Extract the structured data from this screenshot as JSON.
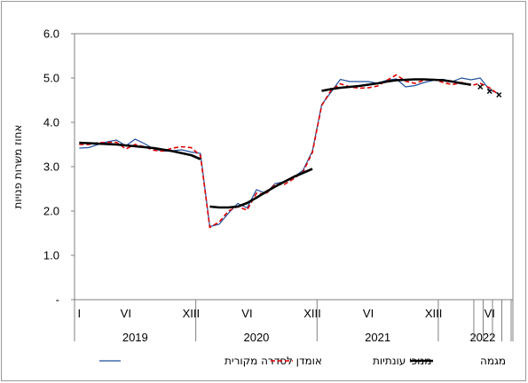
{
  "chart_data": {
    "type": "line",
    "title": "",
    "ylabel": "אחוז משרות פנויות",
    "ylim": [
      0,
      6
    ],
    "yticks": [
      "-",
      "1.0",
      "2.0",
      "3.0",
      "4.0",
      "5.0",
      "6.0"
    ],
    "grid": false,
    "legend_position": "bottom",
    "x_period_labels": [
      {
        "label": "I",
        "index": 0
      },
      {
        "label": "VI",
        "index": 5
      },
      {
        "label": "XIII",
        "index": 12
      },
      {
        "label": "VI",
        "index": 18
      },
      {
        "label": "XIII",
        "index": 25
      },
      {
        "label": "VI",
        "index": 31
      },
      {
        "label": "XIII",
        "index": 38
      },
      {
        "label": "VI",
        "index": 44
      }
    ],
    "years": [
      {
        "label": "2019",
        "start": 0,
        "end": 12
      },
      {
        "label": "2020",
        "start": 13,
        "end": 25
      },
      {
        "label": "2021",
        "start": 26,
        "end": 38
      },
      {
        "label": "2022",
        "start": 39,
        "end": 46
      }
    ],
    "series": [
      {
        "name": "אומדן לסדרה מקורית",
        "color": "#1f4e9a",
        "style": "solid",
        "points": [
          [
            0,
            3.42
          ],
          [
            1,
            3.43
          ],
          [
            2,
            3.5
          ],
          [
            3,
            3.56
          ],
          [
            4,
            3.6
          ],
          [
            5,
            3.47
          ],
          [
            6,
            3.62
          ],
          [
            7,
            3.52
          ],
          [
            8,
            3.4
          ],
          [
            9,
            3.35
          ],
          [
            10,
            3.36
          ],
          [
            11,
            3.38
          ],
          [
            12,
            3.33
          ],
          [
            13,
            3.3
          ],
          [
            14,
            1.65
          ],
          [
            15,
            1.7
          ],
          [
            16,
            1.95
          ],
          [
            17,
            2.17
          ],
          [
            18,
            2.07
          ],
          [
            19,
            2.48
          ],
          [
            20,
            2.4
          ],
          [
            21,
            2.62
          ],
          [
            22,
            2.66
          ],
          [
            23,
            2.76
          ],
          [
            24,
            2.92
          ],
          [
            25,
            3.35
          ],
          [
            26,
            4.4
          ],
          [
            27,
            4.68
          ],
          [
            28,
            4.97
          ],
          [
            29,
            4.92
          ],
          [
            30,
            4.92
          ],
          [
            31,
            4.92
          ],
          [
            32,
            4.88
          ],
          [
            33,
            4.95
          ],
          [
            34,
            4.98
          ],
          [
            35,
            4.8
          ],
          [
            36,
            4.83
          ],
          [
            37,
            4.9
          ],
          [
            38,
            4.95
          ],
          [
            39,
            4.97
          ],
          [
            40,
            4.92
          ],
          [
            41,
            5.0
          ],
          [
            42,
            4.96
          ],
          [
            43,
            5.0
          ],
          [
            44,
            4.73
          ],
          [
            45,
            4.65
          ]
        ]
      },
      {
        "name": "מנוכי עונתיות",
        "color": "#e00000",
        "style": "dashed",
        "points": [
          [
            0,
            3.5
          ],
          [
            1,
            3.5
          ],
          [
            2,
            3.54
          ],
          [
            3,
            3.55
          ],
          [
            4,
            3.55
          ],
          [
            5,
            3.4
          ],
          [
            6,
            3.5
          ],
          [
            7,
            3.45
          ],
          [
            8,
            3.37
          ],
          [
            9,
            3.35
          ],
          [
            10,
            3.42
          ],
          [
            11,
            3.45
          ],
          [
            12,
            3.43
          ],
          [
            13,
            3.25
          ],
          [
            14,
            1.63
          ],
          [
            15,
            1.75
          ],
          [
            16,
            2.0
          ],
          [
            17,
            2.1
          ],
          [
            18,
            2.02
          ],
          [
            19,
            2.4
          ],
          [
            20,
            2.38
          ],
          [
            21,
            2.6
          ],
          [
            22,
            2.6
          ],
          [
            23,
            2.73
          ],
          [
            24,
            2.88
          ],
          [
            25,
            3.32
          ],
          [
            26,
            4.38
          ],
          [
            27,
            4.72
          ],
          [
            28,
            4.87
          ],
          [
            29,
            4.8
          ],
          [
            30,
            4.77
          ],
          [
            31,
            4.78
          ],
          [
            32,
            4.82
          ],
          [
            33,
            4.95
          ],
          [
            34,
            5.07
          ],
          [
            35,
            4.93
          ],
          [
            36,
            4.88
          ],
          [
            37,
            4.95
          ],
          [
            38,
            4.97
          ],
          [
            39,
            4.9
          ],
          [
            40,
            4.85
          ],
          [
            41,
            4.9
          ],
          [
            42,
            4.83
          ],
          [
            43,
            4.88
          ],
          [
            44,
            4.78
          ],
          [
            45,
            4.62
          ]
        ]
      },
      {
        "name": "מגמה",
        "color": "#000000",
        "style": "bold",
        "segments": [
          [
            [
              0,
              3.54
            ],
            [
              2,
              3.52
            ],
            [
              4,
              3.5
            ],
            [
              6,
              3.46
            ],
            [
              8,
              3.42
            ],
            [
              10,
              3.35
            ],
            [
              12,
              3.26
            ],
            [
              13,
              3.17
            ]
          ],
          [
            [
              14,
              2.1
            ],
            [
              15,
              2.08
            ],
            [
              16,
              2.08
            ],
            [
              17,
              2.1
            ],
            [
              18,
              2.18
            ],
            [
              19,
              2.3
            ],
            [
              20,
              2.43
            ],
            [
              21,
              2.55
            ],
            [
              22,
              2.66
            ],
            [
              23,
              2.77
            ],
            [
              24,
              2.86
            ],
            [
              25,
              2.95
            ]
          ],
          [
            [
              26,
              4.71
            ],
            [
              27,
              4.75
            ],
            [
              28,
              4.78
            ],
            [
              29,
              4.8
            ],
            [
              30,
              4.82
            ],
            [
              31,
              4.85
            ],
            [
              32,
              4.88
            ],
            [
              33,
              4.92
            ],
            [
              34,
              4.95
            ],
            [
              35,
              4.96
            ],
            [
              36,
              4.97
            ],
            [
              37,
              4.97
            ],
            [
              38,
              4.96
            ],
            [
              39,
              4.95
            ],
            [
              40,
              4.92
            ],
            [
              41,
              4.88
            ],
            [
              42,
              4.85
            ]
          ]
        ],
        "markers": [
          [
            43,
            4.8
          ],
          [
            44,
            4.7
          ],
          [
            45,
            4.62
          ]
        ]
      }
    ]
  }
}
